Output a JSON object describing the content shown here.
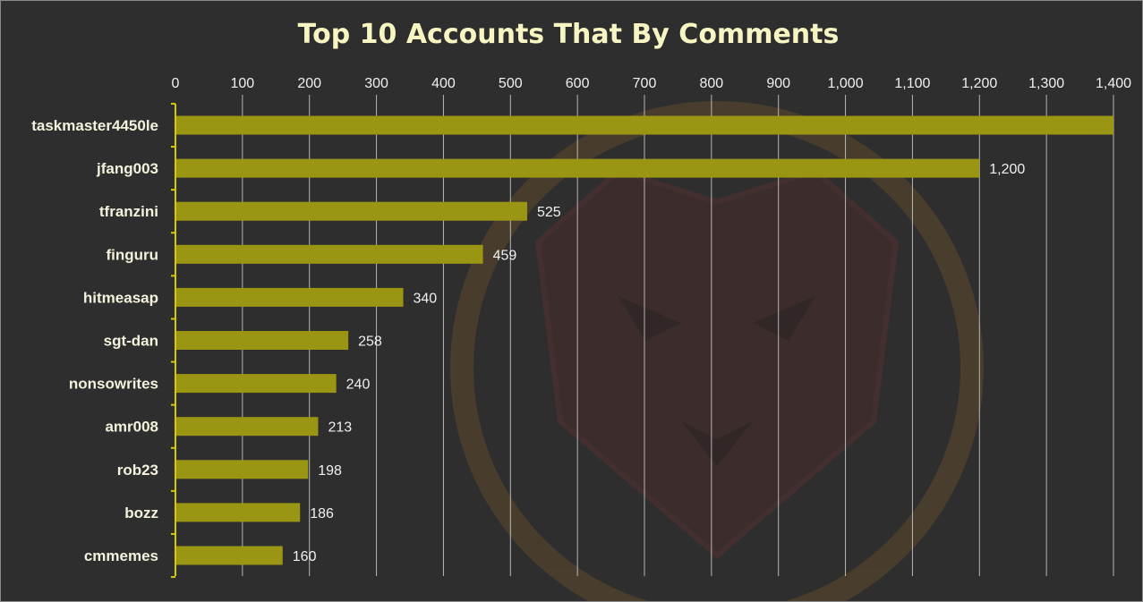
{
  "chart_data": {
    "type": "bar",
    "orientation": "horizontal",
    "title": "Top 10 Accounts That By Comments",
    "categories": [
      "taskmaster4450le",
      "jfang003",
      "tfranzini",
      "finguru",
      "hitmeasap",
      "sgt-dan",
      "nonsowrites",
      "amr008",
      "rob23",
      "bozz",
      "cmmemes"
    ],
    "values": [
      1400,
      1200,
      525,
      459,
      340,
      258,
      240,
      213,
      198,
      186,
      160
    ],
    "data_labels": [
      "",
      "1,200",
      "525",
      "459",
      "340",
      "258",
      "240",
      "213",
      "198",
      "186",
      "160"
    ],
    "x_ticks": [
      "0",
      "100",
      "200",
      "300",
      "400",
      "500",
      "600",
      "700",
      "800",
      "900",
      "1,000",
      "1,100",
      "1,200",
      "1,300",
      "1,400"
    ],
    "xlim": [
      0,
      1400
    ],
    "x_tick_step": 100,
    "axis_position": "top",
    "grid": true,
    "legend": "none",
    "colors": {
      "background": "#2e2e2e",
      "bar": "#9a9614",
      "grid": "#cfcfcf",
      "axis": "#d8c800",
      "title": "#f7f5c2",
      "watermark": "#6a3434"
    },
    "watermark_icon": "lion-shield-watermark-icon"
  }
}
